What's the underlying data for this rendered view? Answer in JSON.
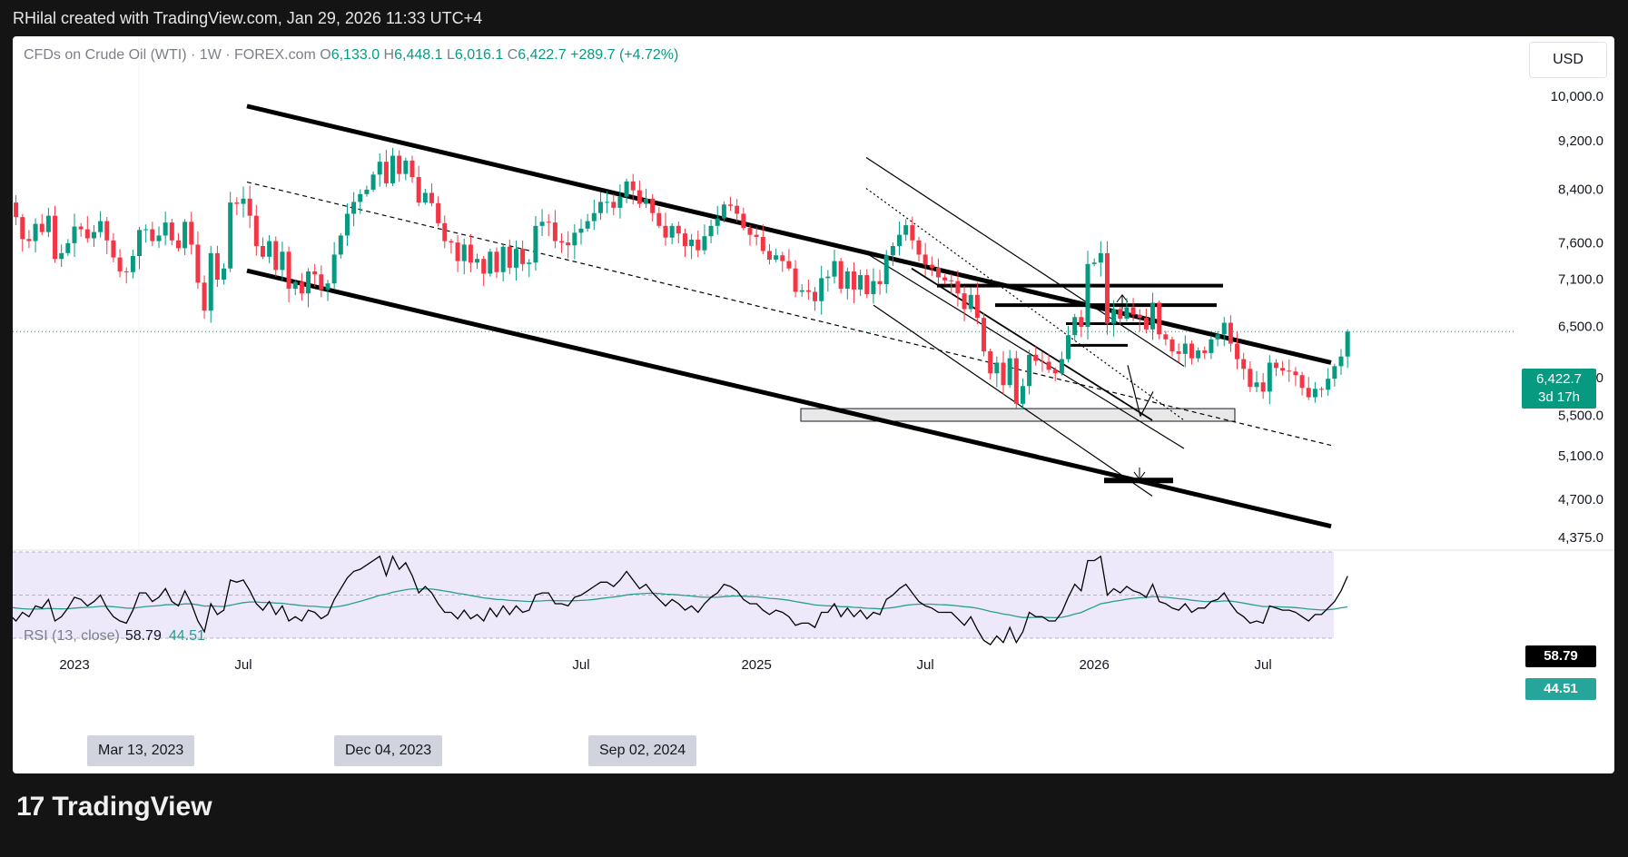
{
  "caption": "RHilal created with TradingView.com, Jan 29, 2026 11:33 UTC+4",
  "legend": {
    "symbol": "CFDs on Crude Oil (WTI) · 1W · FOREX.com",
    "o_label": "O",
    "o": "6,133.0",
    "h_label": "H",
    "h": "6,448.1",
    "l_label": "L",
    "l": "6,016.1",
    "c_label": "C",
    "c": "6,422.7",
    "change": "+289.7 (+4.72%)"
  },
  "currency": "USD",
  "price_tag": {
    "price": "6,422.7",
    "countdown": "3d 17h"
  },
  "rsi": {
    "label": "RSI (13, close)",
    "value": "58.79",
    "ma": "44.51"
  },
  "date_tags": [
    "Mar 13, 2023",
    "Dec 04, 2023",
    "Sep 02, 2024"
  ],
  "brand": {
    "logo": "17",
    "name": "TradingView"
  },
  "colors": {
    "up": "#089981",
    "down": "#f23645",
    "rsi_line": "#000000",
    "rsi_ma": "#2a9d8f",
    "rsi_band": "#ede9fb"
  },
  "chart_data": {
    "type": "candlestick",
    "yaxis_ticks": [
      "10,000.0",
      "9,200.0",
      "8,400.0",
      "7,600.0",
      "7,100.0",
      "6,500.0",
      "5,900.0",
      "5,500.0",
      "5,100.0",
      "4,700.0",
      "4,375.0"
    ],
    "xaxis_ticks": [
      {
        "label": "2023",
        "date": "2023-01-02"
      },
      {
        "label": "Jul",
        "date": "2023-07-03"
      },
      {
        "label": "Jul",
        "date": "2024-07-01"
      },
      {
        "label": "2025",
        "date": "2025-01-06"
      },
      {
        "label": "Jul",
        "date": "2025-07-07"
      },
      {
        "label": "2026",
        "date": "2026-01-05"
      },
      {
        "label": "Jul",
        "date": "2026-07-06"
      }
    ],
    "candles_close": [
      8330,
      8180,
      7960,
      7640,
      7610,
      7860,
      7740,
      7980,
      7360,
      7440,
      7580,
      7820,
      7780,
      7650,
      7740,
      7900,
      7620,
      7380,
      7190,
      7180,
      7400,
      7770,
      7780,
      7610,
      7690,
      7880,
      7620,
      7510,
      7890,
      7560,
      7040,
      6680,
      7440,
      7080,
      7230,
      8180,
      8160,
      8240,
      7980,
      7540,
      7390,
      7610,
      7210,
      7460,
      6960,
      7050,
      6900,
      7190,
      7150,
      6950,
      7030,
      7420,
      7690,
      8010,
      8190,
      8310,
      8380,
      8620,
      8830,
      8480,
      8930,
      8630,
      8850,
      8580,
      8180,
      8330,
      8170,
      7870,
      7610,
      7590,
      7330,
      7560,
      7310,
      7360,
      7160,
      7460,
      7180,
      7530,
      7240,
      7500,
      7290,
      7310,
      7830,
      7890,
      7880,
      7610,
      7590,
      7550,
      7730,
      7790,
      7900,
      8020,
      8190,
      8190,
      8100,
      8270,
      8510,
      8370,
      8160,
      8240,
      8020,
      7830,
      7660,
      7830,
      7720,
      7540,
      7630,
      7480,
      7680,
      7830,
      7940,
      8150,
      8130,
      8010,
      7800,
      7700,
      7670,
      7470,
      7350,
      7410,
      7330,
      7230,
      6920,
      6940,
      6920,
      6800,
      7100,
      7120,
      7330,
      6960,
      7190,
      6950,
      7140,
      6890,
      7060,
      7020,
      7410,
      7540,
      7700,
      7840,
      7620,
      7420,
      7280,
      7240,
      7110,
      7070,
      7060,
      6900,
      6700,
      6880,
      6590,
      6190,
      5940,
      6060,
      5810,
      6110,
      5610,
      5800,
      6150,
      6080,
      6070,
      5980,
      5940,
      6100,
      6380,
      6600,
      6480,
      7290,
      7310,
      7440,
      6520,
      6700,
      6580,
      6720,
      6630,
      6590,
      6450,
      6780,
      6390,
      6330,
      6190,
      6160,
      6280,
      6110,
      6200,
      6170,
      6330,
      6390,
      6530,
      6280,
      6100,
      5990,
      5790,
      5840,
      5740,
      6060,
      6000,
      5970,
      5960,
      5920,
      5780,
      5680,
      5770,
      5760,
      5880,
      6020,
      6130,
      6423
    ],
    "rsi_values": [
      44,
      41,
      38,
      42,
      40,
      45,
      44,
      48,
      38,
      40,
      44,
      49,
      48,
      45,
      47,
      50,
      44,
      40,
      38,
      37,
      43,
      51,
      51,
      47,
      49,
      53,
      47,
      45,
      52,
      46,
      38,
      33,
      46,
      41,
      43,
      57,
      56,
      57,
      52,
      46,
      43,
      47,
      41,
      45,
      38,
      40,
      38,
      43,
      42,
      39,
      41,
      48,
      53,
      58,
      61,
      62,
      64,
      66,
      68,
      59,
      68,
      62,
      65,
      59,
      51,
      54,
      51,
      46,
      42,
      42,
      39,
      43,
      39,
      41,
      38,
      44,
      40,
      45,
      41,
      45,
      42,
      43,
      50,
      51,
      51,
      46,
      46,
      45,
      49,
      50,
      52,
      54,
      56,
      56,
      54,
      57,
      61,
      57,
      53,
      55,
      51,
      48,
      45,
      48,
      46,
      43,
      45,
      42,
      46,
      49,
      51,
      55,
      54,
      52,
      48,
      46,
      46,
      43,
      41,
      43,
      42,
      40,
      36,
      37,
      37,
      35,
      42,
      42,
      46,
      40,
      44,
      40,
      43,
      39,
      42,
      41,
      48,
      50,
      53,
      55,
      51,
      47,
      45,
      44,
      42,
      42,
      42,
      39,
      36,
      40,
      34,
      29,
      27,
      31,
      28,
      35,
      28,
      33,
      42,
      40,
      40,
      38,
      38,
      42,
      49,
      55,
      52,
      66,
      66,
      68,
      50,
      53,
      51,
      54,
      52,
      51,
      49,
      55,
      47,
      46,
      44,
      43,
      46,
      42,
      44,
      44,
      47,
      48,
      51,
      46,
      42,
      40,
      37,
      38,
      37,
      45,
      44,
      43,
      43,
      42,
      40,
      38,
      41,
      41,
      44,
      47,
      52,
      58.79
    ],
    "rsi_ma_values": [
      45,
      44.5,
      44,
      43.7,
      43.5,
      43.5,
      43.6,
      43.8,
      43.7,
      43.6,
      43.7,
      44,
      44.2,
      44.3,
      44.5,
      44.8,
      44.8,
      44.6,
      44.3,
      44,
      43.9,
      44.3,
      44.7,
      44.9,
      45.1,
      45.5,
      45.6,
      45.6,
      45.9,
      45.9,
      45.5,
      44.9,
      45,
      44.8,
      44.7,
      45.3,
      45.9,
      46.5,
      46.8,
      46.8,
      46.6,
      46.6,
      46.3,
      46.2,
      45.8,
      45.5,
      45.1,
      44.9,
      44.8,
      44.5,
      44.3,
      44.5,
      44.9,
      45.5,
      46.3,
      47.1,
      48,
      48.9,
      49.9,
      50.4,
      51.3,
      51.9,
      52.5,
      52.9,
      52.8,
      52.9,
      52.8,
      52.4,
      51.9,
      51.4,
      50.8,
      50.4,
      49.8,
      49.3,
      48.7,
      48.4,
      48,
      47.9,
      47.5,
      47.4,
      47.2,
      47,
      47.2,
      47.3,
      47.5,
      47.4,
      47.4,
      47.3,
      47.4,
      47.5,
      47.7,
      48,
      48.4,
      48.8,
      49.1,
      49.5,
      50.1,
      50.4,
      50.6,
      50.8,
      50.9,
      50.7,
      50.4,
      50.3,
      50.1,
      49.8,
      49.6,
      49.2,
      49,
      49,
      49,
      49.3,
      49.5,
      49.6,
      49.5,
      49.3,
      49.2,
      48.9,
      48.5,
      48.3,
      48,
      47.6,
      47,
      46.5,
      46,
      45.4,
      45.2,
      45,
      45,
      44.6,
      44.6,
      44.3,
      44.2,
      43.9,
      43.8,
      43.6,
      43.9,
      44.2,
      44.7,
      45.3,
      45.6,
      45.8,
      45.8,
      45.8,
      45.6,
      45.5,
      45.3,
      45,
      44.6,
      44.4,
      43.9,
      43.2,
      42.4,
      41.9,
      41.2,
      40.8,
      40.1,
      39.6,
      39.6,
      39.7,
      39.7,
      39.6,
      39.5,
      39.7,
      40.3,
      41.2,
      41.9,
      43.3,
      44.6,
      46,
      46.5,
      47.1,
      47.5,
      48.1,
      48.5,
      48.8,
      48.9,
      49.3,
      49.2,
      49,
      48.7,
      48.3,
      48.1,
      47.6,
      47.3,
      47,
      47,
      47,
      47.3,
      47.2,
      46.8,
      46.3,
      45.7,
      45.2,
      44.7,
      44.7,
      44.6,
      44.5,
      44.4,
      44.2,
      43.9,
      43.5,
      43.3,
      43.1,
      43.2,
      43.5,
      44.1,
      44.51
    ]
  }
}
